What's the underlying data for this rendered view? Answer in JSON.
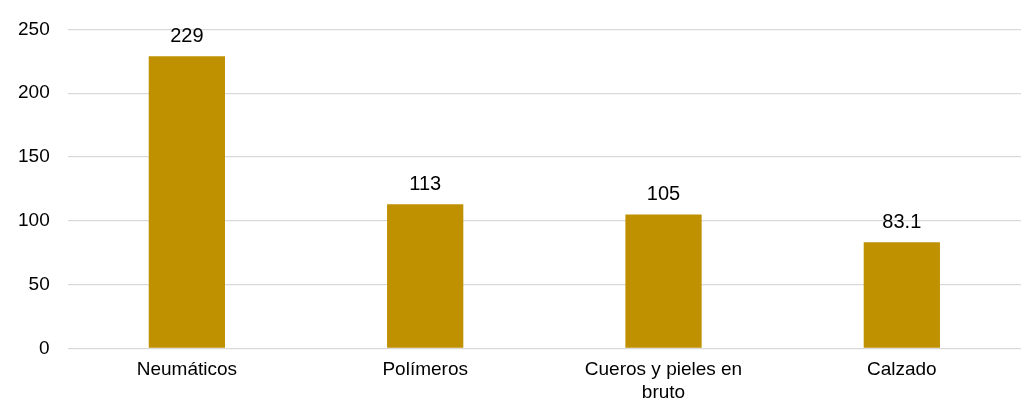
{
  "chart_data": {
    "type": "bar",
    "categories": [
      "Neumáticos",
      "Polímeros",
      "Cueros y pieles en bruto",
      "Calzado"
    ],
    "values": [
      229,
      113,
      105,
      83.1
    ],
    "color": "#bf9000",
    "ylim": [
      0,
      250
    ],
    "yticks": [
      0,
      50,
      100,
      150,
      200,
      250
    ],
    "grid": "y",
    "data_labels": true,
    "legend": false
  }
}
